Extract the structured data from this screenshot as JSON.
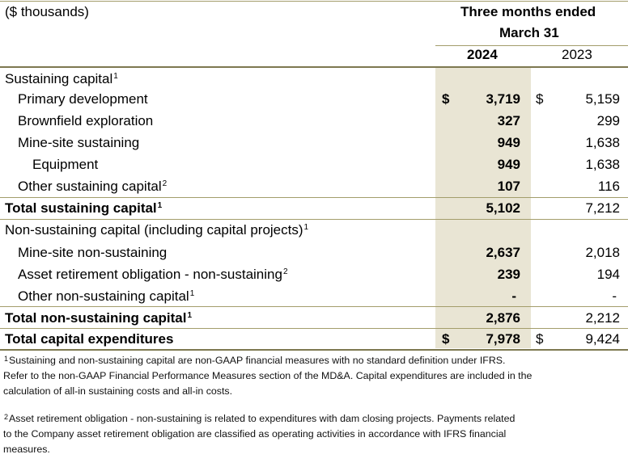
{
  "header": {
    "units": "($ thousands)",
    "period_line1": "Three months ended",
    "period_line2": "March 31",
    "col_2024": "2024",
    "col_2023": "2023"
  },
  "rows": [
    {
      "label": "Sustaining capital",
      "sup": "1",
      "v2024": "",
      "v2023": "",
      "cur2024": "",
      "cur2023": ""
    },
    {
      "label": "Primary development",
      "sup": "",
      "v2024": "3,719",
      "v2023": "5,159",
      "cur2024": "$",
      "cur2023": "$"
    },
    {
      "label": "Brownfield exploration",
      "sup": "",
      "v2024": "327",
      "v2023": "299",
      "cur2024": "",
      "cur2023": ""
    },
    {
      "label": "Mine-site sustaining",
      "sup": "",
      "v2024": "949",
      "v2023": "1,638",
      "cur2024": "",
      "cur2023": ""
    },
    {
      "label": "Equipment",
      "sup": "",
      "v2024": "949",
      "v2023": "1,638",
      "cur2024": "",
      "cur2023": ""
    },
    {
      "label": "Other sustaining capital",
      "sup": "2",
      "v2024": "107",
      "v2023": "116",
      "cur2024": "",
      "cur2023": ""
    },
    {
      "label": "Total sustaining capital",
      "sup": "1",
      "v2024": "5,102",
      "v2023": "7,212",
      "cur2024": "",
      "cur2023": ""
    },
    {
      "label": "Non-sustaining capital (including capital projects)",
      "sup": "1",
      "v2024": "",
      "v2023": "",
      "cur2024": "",
      "cur2023": ""
    },
    {
      "label": "Mine-site non-sustaining",
      "sup": "",
      "v2024": "2,637",
      "v2023": "2,018",
      "cur2024": "",
      "cur2023": ""
    },
    {
      "label": "Asset retirement obligation - non-sustaining",
      "sup": "2",
      "v2024": "239",
      "v2023": "194",
      "cur2024": "",
      "cur2023": ""
    },
    {
      "label": "Other non-sustaining capital",
      "sup": "1",
      "v2024": "-",
      "v2023": "-",
      "cur2024": "",
      "cur2023": ""
    },
    {
      "label": "Total non-sustaining capital",
      "sup": "1",
      "v2024": "2,876",
      "v2023": "2,212",
      "cur2024": "",
      "cur2023": ""
    },
    {
      "label": "Total capital expenditures",
      "sup": "",
      "v2024": "7,978",
      "v2023": "9,424",
      "cur2024": "$",
      "cur2023": "$"
    }
  ],
  "footnotes": [
    {
      "sup": "1",
      "line1": "Sustaining and non-sustaining capital are non-GAAP financial measures with no standard definition under IFRS.",
      "line2": "Refer to the non-GAAP Financial Performance Measures section of the MD&A. Capital expenditures are included in the",
      "line3": "calculation of all-in sustaining costs and all-in costs."
    },
    {
      "sup": "2",
      "line1": "Asset retirement obligation - non-sustaining is related to expenditures with dam closing projects. Payments related",
      "line2": "to the Company asset retirement obligation are classified as operating activities in accordance with IFRS financial",
      "line3": "measures."
    }
  ]
}
